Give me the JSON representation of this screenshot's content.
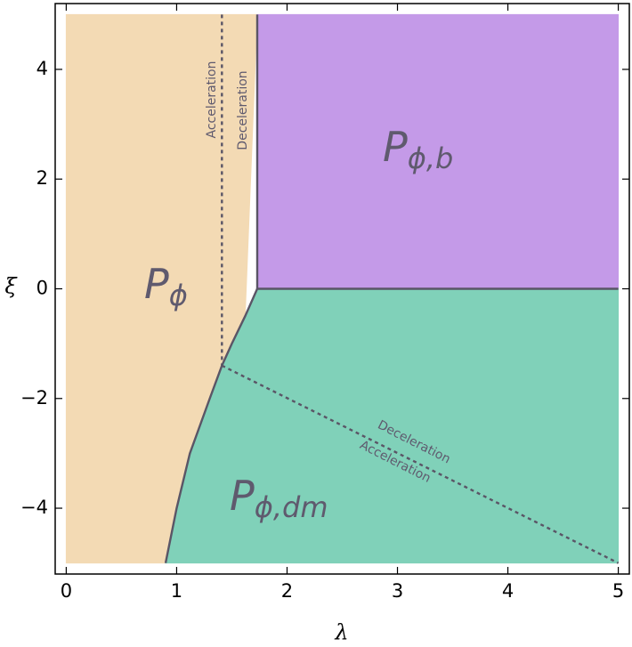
{
  "chart_data": {
    "type": "region",
    "x_label": "λ",
    "y_label": "ξ",
    "xlim": [
      -0.1,
      5.1
    ],
    "ylim": [
      -5.2,
      5.2
    ],
    "xticks": [
      0,
      1,
      2,
      3,
      4,
      5
    ],
    "yticks": [
      {
        "value": -4,
        "label": "−4"
      },
      {
        "value": -2,
        "label": "−2"
      },
      0,
      2,
      4
    ],
    "boundary_color": "#5a5566",
    "regions": [
      {
        "main": "P",
        "sub": "ϕ",
        "color": "#f3dab4",
        "x": [
          0,
          1.41,
          1.73,
          1.62,
          1.5,
          1.41,
          1.3,
          1.12,
          1.0,
          0.9,
          0
        ],
        "y": [
          5,
          5,
          5,
          -0.5,
          -1,
          -1.4,
          -2,
          -3,
          -4,
          -5,
          -5
        ]
      },
      {
        "main": "P",
        "sub": "ϕ,b",
        "color": "#c49ae8",
        "x": [
          1.73,
          5,
          5,
          1.73
        ],
        "y": [
          5,
          5,
          0,
          0
        ]
      },
      {
        "main": "P",
        "sub": "ϕ,dm",
        "color": "#80d1b9",
        "x": [
          1.73,
          5,
          5,
          0.9,
          1.0,
          1.12,
          1.3,
          1.41,
          1.5,
          1.62
        ],
        "y": [
          0,
          0,
          -5,
          -5,
          -4,
          -3,
          -2,
          -1.4,
          -1,
          -0.5
        ]
      }
    ],
    "boundaries": [
      {
        "style": "solid",
        "x": [
          1.73,
          1.73
        ],
        "y": [
          5,
          0
        ]
      },
      {
        "style": "solid",
        "x": [
          1.73,
          5
        ],
        "y": [
          0,
          0
        ]
      },
      {
        "style": "solid",
        "x": [
          1.73,
          1.62,
          1.5,
          1.41,
          1.3,
          1.12,
          1.0,
          0.9
        ],
        "y": [
          0,
          -0.5,
          -1,
          -1.4,
          -2,
          -3,
          -4,
          -5
        ]
      },
      {
        "style": "dashed",
        "x": [
          1.41,
          1.41
        ],
        "y": [
          5,
          -1.4
        ]
      },
      {
        "style": "dashed",
        "x": [
          1.41,
          5
        ],
        "y": [
          -1.4,
          -5
        ]
      }
    ],
    "annotations": [
      "Acceleration",
      "Deceleration",
      "Deceleration",
      "Acceleration"
    ]
  }
}
